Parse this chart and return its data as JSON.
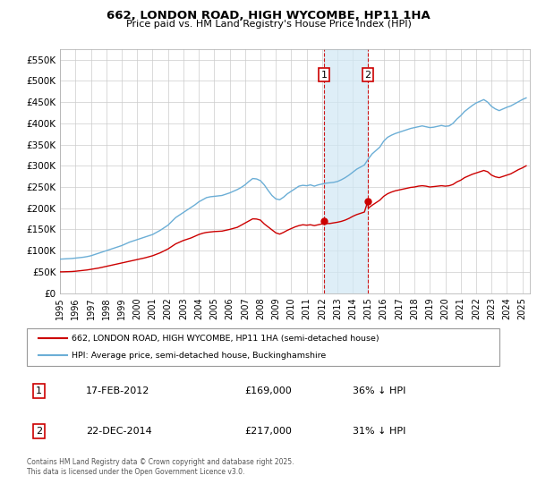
{
  "title": "662, LONDON ROAD, HIGH WYCOMBE, HP11 1HA",
  "subtitle": "Price paid vs. HM Land Registry's House Price Index (HPI)",
  "legend_line1": "662, LONDON ROAD, HIGH WYCOMBE, HP11 1HA (semi-detached house)",
  "legend_line2": "HPI: Average price, semi-detached house, Buckinghamshire",
  "footnote": "Contains HM Land Registry data © Crown copyright and database right 2025.\nThis data is licensed under the Open Government Licence v3.0.",
  "transaction1_label": "1",
  "transaction1_date": "17-FEB-2012",
  "transaction1_price": "£169,000",
  "transaction1_hpi": "36% ↓ HPI",
  "transaction1_x": 2012.125,
  "transaction1_y": 169000,
  "transaction2_label": "2",
  "transaction2_date": "22-DEC-2014",
  "transaction2_price": "£217,000",
  "transaction2_hpi": "31% ↓ HPI",
  "transaction2_x": 2014.975,
  "transaction2_y": 217000,
  "vline1_x": 2012.125,
  "vline2_x": 2014.975,
  "hpi_color": "#6baed6",
  "price_color": "#cc0000",
  "shade_color": "#d0e8f5",
  "xmin": 1995,
  "xmax": 2025.5,
  "ymin": 0,
  "ymax": 575000,
  "yticks": [
    0,
    50000,
    100000,
    150000,
    200000,
    250000,
    300000,
    350000,
    400000,
    450000,
    500000,
    550000
  ],
  "xticks": [
    1995,
    1996,
    1997,
    1998,
    1999,
    2000,
    2001,
    2002,
    2003,
    2004,
    2005,
    2006,
    2007,
    2008,
    2009,
    2010,
    2011,
    2012,
    2013,
    2014,
    2015,
    2016,
    2017,
    2018,
    2019,
    2020,
    2021,
    2022,
    2023,
    2024,
    2025
  ],
  "hpi_data": [
    [
      1995.0,
      80000
    ],
    [
      1995.25,
      80500
    ],
    [
      1995.5,
      81000
    ],
    [
      1995.75,
      81500
    ],
    [
      1996.0,
      82500
    ],
    [
      1996.25,
      83500
    ],
    [
      1996.5,
      84500
    ],
    [
      1996.75,
      86000
    ],
    [
      1997.0,
      88000
    ],
    [
      1997.25,
      91000
    ],
    [
      1997.5,
      94000
    ],
    [
      1997.75,
      97000
    ],
    [
      1998.0,
      100000
    ],
    [
      1998.25,
      103000
    ],
    [
      1998.5,
      106000
    ],
    [
      1998.75,
      109000
    ],
    [
      1999.0,
      112000
    ],
    [
      1999.25,
      116000
    ],
    [
      1999.5,
      120000
    ],
    [
      1999.75,
      123000
    ],
    [
      2000.0,
      126000
    ],
    [
      2000.25,
      129000
    ],
    [
      2000.5,
      132000
    ],
    [
      2000.75,
      135000
    ],
    [
      2001.0,
      138000
    ],
    [
      2001.25,
      143000
    ],
    [
      2001.5,
      148000
    ],
    [
      2001.75,
      154000
    ],
    [
      2002.0,
      160000
    ],
    [
      2002.25,
      169000
    ],
    [
      2002.5,
      178000
    ],
    [
      2002.75,
      184000
    ],
    [
      2003.0,
      190000
    ],
    [
      2003.25,
      196000
    ],
    [
      2003.5,
      202000
    ],
    [
      2003.75,
      208000
    ],
    [
      2004.0,
      215000
    ],
    [
      2004.25,
      220000
    ],
    [
      2004.5,
      225000
    ],
    [
      2004.75,
      227000
    ],
    [
      2005.0,
      228000
    ],
    [
      2005.25,
      229000
    ],
    [
      2005.5,
      230000
    ],
    [
      2005.75,
      233000
    ],
    [
      2006.0,
      236000
    ],
    [
      2006.25,
      240000
    ],
    [
      2006.5,
      244000
    ],
    [
      2006.75,
      249000
    ],
    [
      2007.0,
      255000
    ],
    [
      2007.25,
      263000
    ],
    [
      2007.5,
      270000
    ],
    [
      2007.75,
      269000
    ],
    [
      2008.0,
      265000
    ],
    [
      2008.25,
      255000
    ],
    [
      2008.5,
      242000
    ],
    [
      2008.75,
      230000
    ],
    [
      2009.0,
      222000
    ],
    [
      2009.25,
      220000
    ],
    [
      2009.5,
      226000
    ],
    [
      2009.75,
      234000
    ],
    [
      2010.0,
      240000
    ],
    [
      2010.25,
      246000
    ],
    [
      2010.5,
      252000
    ],
    [
      2010.75,
      254000
    ],
    [
      2011.0,
      253000
    ],
    [
      2011.25,
      255000
    ],
    [
      2011.5,
      252000
    ],
    [
      2011.75,
      255000
    ],
    [
      2012.0,
      257000
    ],
    [
      2012.25,
      259000
    ],
    [
      2012.5,
      260000
    ],
    [
      2012.75,
      261000
    ],
    [
      2013.0,
      263000
    ],
    [
      2013.25,
      267000
    ],
    [
      2013.5,
      272000
    ],
    [
      2013.75,
      278000
    ],
    [
      2014.0,
      285000
    ],
    [
      2014.25,
      292000
    ],
    [
      2014.5,
      297000
    ],
    [
      2014.75,
      302000
    ],
    [
      2015.0,
      316000
    ],
    [
      2015.25,
      328000
    ],
    [
      2015.5,
      336000
    ],
    [
      2015.75,
      344000
    ],
    [
      2016.0,
      358000
    ],
    [
      2016.25,
      367000
    ],
    [
      2016.5,
      372000
    ],
    [
      2016.75,
      376000
    ],
    [
      2017.0,
      379000
    ],
    [
      2017.25,
      382000
    ],
    [
      2017.5,
      385000
    ],
    [
      2017.75,
      388000
    ],
    [
      2018.0,
      390000
    ],
    [
      2018.25,
      392000
    ],
    [
      2018.5,
      394000
    ],
    [
      2018.75,
      392000
    ],
    [
      2019.0,
      390000
    ],
    [
      2019.25,
      391000
    ],
    [
      2019.5,
      393000
    ],
    [
      2019.75,
      395000
    ],
    [
      2020.0,
      393000
    ],
    [
      2020.25,
      394000
    ],
    [
      2020.5,
      400000
    ],
    [
      2020.75,
      410000
    ],
    [
      2021.0,
      418000
    ],
    [
      2021.25,
      428000
    ],
    [
      2021.5,
      435000
    ],
    [
      2021.75,
      442000
    ],
    [
      2022.0,
      448000
    ],
    [
      2022.25,
      452000
    ],
    [
      2022.5,
      456000
    ],
    [
      2022.75,
      450000
    ],
    [
      2023.0,
      440000
    ],
    [
      2023.25,
      434000
    ],
    [
      2023.5,
      430000
    ],
    [
      2023.75,
      434000
    ],
    [
      2024.0,
      438000
    ],
    [
      2024.25,
      441000
    ],
    [
      2024.5,
      446000
    ],
    [
      2024.75,
      451000
    ],
    [
      2025.0,
      456000
    ],
    [
      2025.25,
      460000
    ]
  ],
  "price_data": [
    [
      1995.0,
      50000
    ],
    [
      1995.25,
      50200
    ],
    [
      1995.5,
      50500
    ],
    [
      1995.75,
      50800
    ],
    [
      1996.0,
      51500
    ],
    [
      1996.25,
      52500
    ],
    [
      1996.5,
      53500
    ],
    [
      1996.75,
      54500
    ],
    [
      1997.0,
      56000
    ],
    [
      1997.25,
      57500
    ],
    [
      1997.5,
      59000
    ],
    [
      1997.75,
      61000
    ],
    [
      1998.0,
      63000
    ],
    [
      1998.25,
      65000
    ],
    [
      1998.5,
      67000
    ],
    [
      1998.75,
      69000
    ],
    [
      1999.0,
      71000
    ],
    [
      1999.25,
      73000
    ],
    [
      1999.5,
      75000
    ],
    [
      1999.75,
      77000
    ],
    [
      2000.0,
      79000
    ],
    [
      2000.25,
      81000
    ],
    [
      2000.5,
      83000
    ],
    [
      2000.75,
      85500
    ],
    [
      2001.0,
      88000
    ],
    [
      2001.25,
      91500
    ],
    [
      2001.5,
      95000
    ],
    [
      2001.75,
      99500
    ],
    [
      2002.0,
      104000
    ],
    [
      2002.25,
      110000
    ],
    [
      2002.5,
      116000
    ],
    [
      2002.75,
      120000
    ],
    [
      2003.0,
      124000
    ],
    [
      2003.25,
      127000
    ],
    [
      2003.5,
      130000
    ],
    [
      2003.75,
      134000
    ],
    [
      2004.0,
      138000
    ],
    [
      2004.25,
      141000
    ],
    [
      2004.5,
      143000
    ],
    [
      2004.75,
      144000
    ],
    [
      2005.0,
      145000
    ],
    [
      2005.25,
      145500
    ],
    [
      2005.5,
      146000
    ],
    [
      2005.75,
      148000
    ],
    [
      2006.0,
      150000
    ],
    [
      2006.25,
      152500
    ],
    [
      2006.5,
      155000
    ],
    [
      2006.75,
      160000
    ],
    [
      2007.0,
      165000
    ],
    [
      2007.25,
      170000
    ],
    [
      2007.5,
      175000
    ],
    [
      2007.75,
      174500
    ],
    [
      2008.0,
      172000
    ],
    [
      2008.25,
      163000
    ],
    [
      2008.5,
      156000
    ],
    [
      2008.75,
      149000
    ],
    [
      2009.0,
      142000
    ],
    [
      2009.25,
      139000
    ],
    [
      2009.5,
      143000
    ],
    [
      2009.75,
      148000
    ],
    [
      2010.0,
      152000
    ],
    [
      2010.25,
      156000
    ],
    [
      2010.5,
      159000
    ],
    [
      2010.75,
      161000
    ],
    [
      2011.0,
      160000
    ],
    [
      2011.25,
      161000
    ],
    [
      2011.5,
      159000
    ],
    [
      2011.75,
      161000
    ],
    [
      2012.0,
      163000
    ],
    [
      2012.125,
      169000
    ],
    [
      2012.25,
      164000
    ],
    [
      2012.5,
      164000
    ],
    [
      2012.75,
      165500
    ],
    [
      2013.0,
      167000
    ],
    [
      2013.25,
      169000
    ],
    [
      2013.5,
      172000
    ],
    [
      2013.75,
      176000
    ],
    [
      2014.0,
      181000
    ],
    [
      2014.25,
      185000
    ],
    [
      2014.5,
      188000
    ],
    [
      2014.75,
      191000
    ],
    [
      2014.975,
      217000
    ],
    [
      2015.0,
      200000
    ],
    [
      2015.25,
      207000
    ],
    [
      2015.5,
      213000
    ],
    [
      2015.75,
      219000
    ],
    [
      2016.0,
      228000
    ],
    [
      2016.25,
      234000
    ],
    [
      2016.5,
      238000
    ],
    [
      2016.75,
      241000
    ],
    [
      2017.0,
      243000
    ],
    [
      2017.25,
      245000
    ],
    [
      2017.5,
      247000
    ],
    [
      2017.75,
      249000
    ],
    [
      2018.0,
      250000
    ],
    [
      2018.25,
      252000
    ],
    [
      2018.5,
      253000
    ],
    [
      2018.75,
      252000
    ],
    [
      2019.0,
      250000
    ],
    [
      2019.25,
      251000
    ],
    [
      2019.5,
      252000
    ],
    [
      2019.75,
      253000
    ],
    [
      2020.0,
      252000
    ],
    [
      2020.25,
      253000
    ],
    [
      2020.5,
      256000
    ],
    [
      2020.75,
      262000
    ],
    [
      2021.0,
      266000
    ],
    [
      2021.25,
      272000
    ],
    [
      2021.5,
      276000
    ],
    [
      2021.75,
      280000
    ],
    [
      2022.0,
      283000
    ],
    [
      2022.25,
      286000
    ],
    [
      2022.5,
      289000
    ],
    [
      2022.75,
      286000
    ],
    [
      2023.0,
      278000
    ],
    [
      2023.25,
      274000
    ],
    [
      2023.5,
      272000
    ],
    [
      2023.75,
      275000
    ],
    [
      2024.0,
      278000
    ],
    [
      2024.25,
      281000
    ],
    [
      2024.5,
      286000
    ],
    [
      2024.75,
      291000
    ],
    [
      2025.0,
      295000
    ],
    [
      2025.25,
      300000
    ]
  ]
}
